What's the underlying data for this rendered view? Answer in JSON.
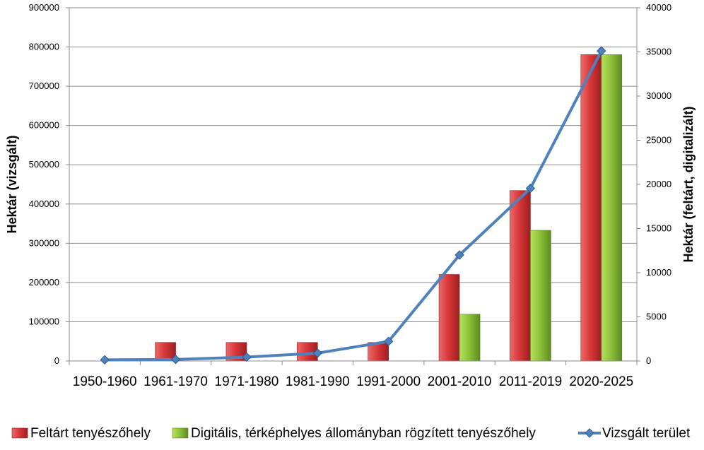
{
  "chart_data": {
    "type": "bar",
    "categories": [
      "1950-1960",
      "1961-1970",
      "1971-1980",
      "1981-1990",
      "1991-2000",
      "2001-2010",
      "2011-2019",
      "2020-2025"
    ],
    "series": [
      {
        "name": "Feltárt tenyészőhely",
        "kind": "bar",
        "axis": "right",
        "color": "#d9383a",
        "values": [
          0,
          2100,
          2100,
          2100,
          2100,
          9800,
          19300,
          34700
        ]
      },
      {
        "name": "Digitális, térképhelyes állományban rögzített tenyészőhely",
        "kind": "bar",
        "axis": "right",
        "color": "#8fc33a",
        "values": [
          0,
          0,
          0,
          0,
          0,
          5300,
          14800,
          34700
        ]
      },
      {
        "name": "Vizsgált terület",
        "kind": "line",
        "axis": "left",
        "color": "#4f81bd",
        "values": [
          3000,
          4000,
          10000,
          20000,
          50000,
          270000,
          440000,
          790000
        ]
      }
    ],
    "y_left": {
      "label": "Hektár (vizsgált)",
      "min": 0,
      "max": 900000,
      "step": 100000,
      "ticks": [
        "0",
        "100000",
        "200000",
        "300000",
        "400000",
        "500000",
        "600000",
        "700000",
        "800000",
        "900000"
      ]
    },
    "y_right": {
      "label": "Hektár (feltárt, digitalizált)",
      "min": 0,
      "max": 40000,
      "step": 5000,
      "ticks": [
        "0",
        "5000",
        "10000",
        "15000",
        "20000",
        "25000",
        "30000",
        "35000",
        "40000"
      ]
    },
    "grid": true,
    "legend_position": "bottom"
  }
}
